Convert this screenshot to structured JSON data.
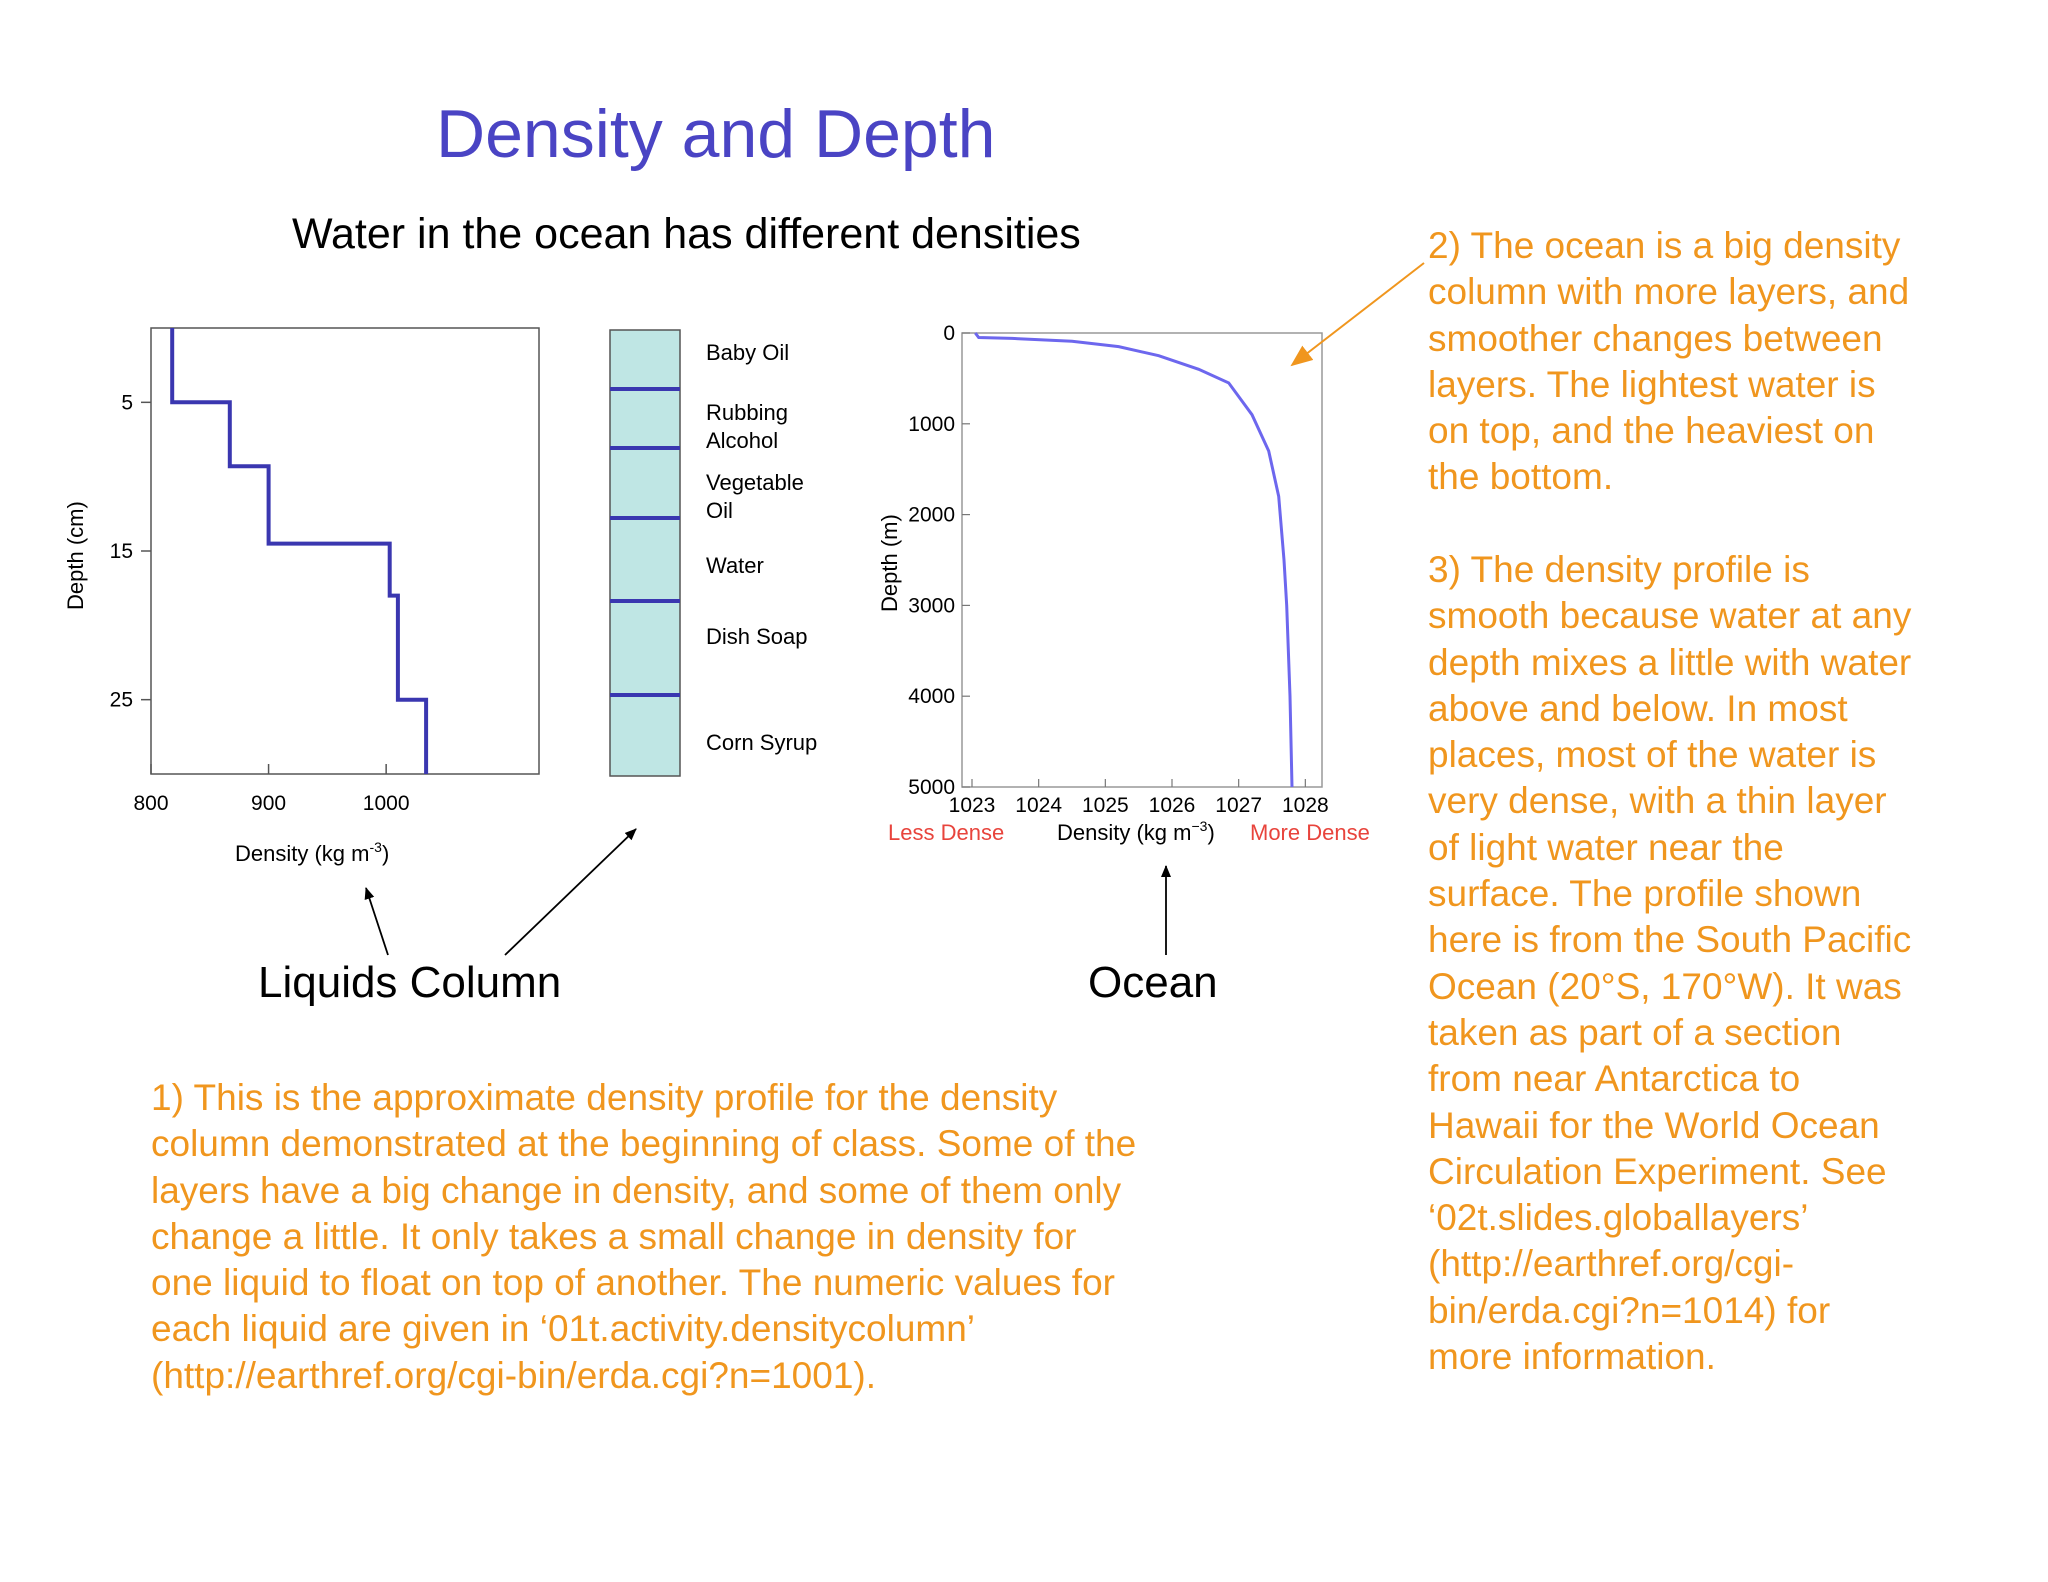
{
  "title": "Density and Depth",
  "subtitle": "Water in the ocean has different densities",
  "captions": {
    "liquids": "Liquids Column",
    "ocean": "Ocean"
  },
  "colors": {
    "title": "#4a44c4",
    "notes": "#f0961e",
    "profile_line": "#3a37b0",
    "ocean_line": "#6d67ee",
    "column_fill": "#bfe6e4",
    "less_more_dense": "#e8443c"
  },
  "notes": {
    "n1": "1) This is the approximate density profile for the density\ncolumn demonstrated at the beginning of class. Some of the\nlayers have a big change in density, and some of them only\nchange a little. It only takes a small change in density for\none liquid to float on top of another.  The numeric values for\neach liquid are given in ‘01t.activity.densitycolumn’\n(http://earthref.org/cgi-bin/erda.cgi?n=1001).",
    "n2": "2) The ocean is a big density\ncolumn with more layers, and\nsmoother changes between\nlayers. The lightest water is\non top, and the heaviest on\nthe bottom.",
    "n3": "3) The density profile is\nsmooth because water at any\ndepth mixes a little with water\nabove and below. In most\nplaces, most of the water is\nvery dense, with a thin layer\nof light water near the\nsurface. The profile shown\nhere is from the South Pacific\nOcean (20°S, 170°W). It was\ntaken as part of a section\nfrom near Antarctica to\nHawaii for the World Ocean\nCirculation Experiment. See\n‘02t.slides.globallayers’\n(http://earthref.org/cgi-\nbin/erda.cgi?n=1014) for\nmore information."
  },
  "layers": [
    "Baby Oil",
    "Rubbing\nAlcohol",
    "Vegetable\nOil",
    "Water",
    "Dish Soap",
    "Corn Syrup"
  ],
  "chart_data": [
    {
      "type": "line",
      "xlabel": "Density (kg m-3)",
      "ylabel": "Depth (cm)",
      "xlim": [
        800,
        1130
      ],
      "ylim": [
        0,
        30
      ],
      "y_inverted": true,
      "x_ticks": [
        800,
        900,
        1000
      ],
      "y_ticks": [
        5,
        15,
        25
      ],
      "points": [
        [
          818,
          0
        ],
        [
          818,
          5
        ],
        [
          867,
          5
        ],
        [
          867,
          9.3
        ],
        [
          900,
          9.3
        ],
        [
          900,
          14.5
        ],
        [
          1003,
          14.5
        ],
        [
          1003,
          18
        ],
        [
          1010,
          18
        ],
        [
          1010,
          25
        ],
        [
          1034,
          25
        ],
        [
          1034,
          32
        ]
      ]
    },
    {
      "type": "line",
      "xlabel": "Density (kg m−3)",
      "ylabel": "Depth (m)",
      "xlim": [
        1022.85,
        1028.25
      ],
      "ylim": [
        0,
        5000
      ],
      "y_inverted": true,
      "x_ticks": [
        1023,
        1024,
        1025,
        1026,
        1027,
        1028
      ],
      "y_ticks": [
        0,
        1000,
        2000,
        3000,
        4000,
        5000
      ],
      "x_extremes": {
        "left": "Less Dense",
        "right": "More Dense"
      },
      "points": [
        [
          1023.05,
          0
        ],
        [
          1023.1,
          50
        ],
        [
          1023.6,
          60
        ],
        [
          1024.5,
          90
        ],
        [
          1025.2,
          150
        ],
        [
          1025.8,
          250
        ],
        [
          1026.4,
          400
        ],
        [
          1026.85,
          550
        ],
        [
          1027.2,
          900
        ],
        [
          1027.45,
          1300
        ],
        [
          1027.6,
          1800
        ],
        [
          1027.68,
          2500
        ],
        [
          1027.72,
          3000
        ],
        [
          1027.77,
          4000
        ],
        [
          1027.8,
          5000
        ]
      ]
    }
  ]
}
